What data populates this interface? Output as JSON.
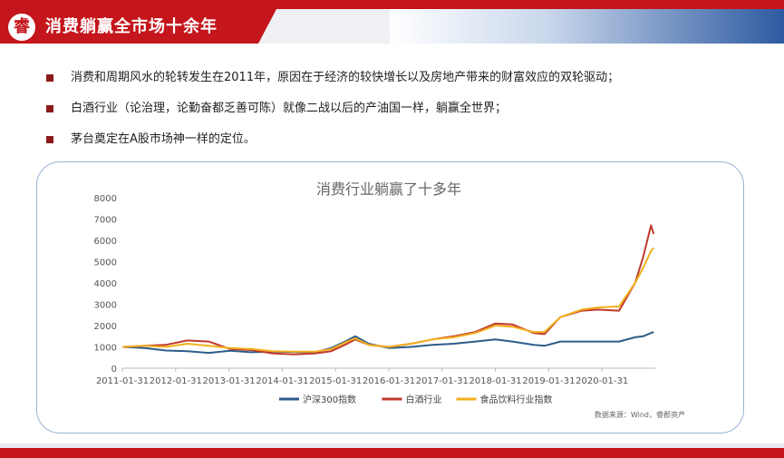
{
  "header": {
    "logo_glyph": "睿",
    "title": "消费躺赢全市场十余年",
    "colors": {
      "accent": "#c4161c",
      "blue": "#2d5aa0"
    }
  },
  "bullets": [
    "消费和周期风水的轮转发生在2011年，原因在于经济的较快增长以及房地产带来的财富效应的双轮驱动；",
    "白酒行业（论治理，论勤奋都乏善可陈）就像二战以后的产油国一样，躺赢全世界；",
    "茅台奠定在A股市场神一样的定位。"
  ],
  "chart_data": {
    "type": "line",
    "title": "消费行业躺赢了十多年",
    "source": "数据来源：Wind，睿郡资产",
    "x_ticks": [
      "2011-01-31",
      "2012-01-31",
      "2013-01-31",
      "2014-01-31",
      "2015-01-31",
      "2016-01-31",
      "2017-01-31",
      "2018-01-31",
      "2019-01-31",
      "2020-01-31"
    ],
    "ylim": [
      0,
      8000
    ],
    "y_ticks": [
      0,
      1000,
      2000,
      3000,
      4000,
      5000,
      6000,
      7000,
      8000
    ],
    "x": [
      2011.08,
      2011.5,
      2011.9,
      2012.3,
      2012.7,
      2013.1,
      2013.5,
      2013.9,
      2014.3,
      2014.7,
      2015.0,
      2015.3,
      2015.45,
      2015.7,
      2016.08,
      2016.5,
      2016.9,
      2017.3,
      2017.7,
      2018.08,
      2018.4,
      2018.8,
      2019.0,
      2019.3,
      2019.7,
      2020.0,
      2020.4,
      2020.7,
      2020.85,
      2021.0,
      2021.05
    ],
    "series": [
      {
        "name": "沪深300指数",
        "color": "#2e5c8a",
        "values": [
          1000,
          950,
          830,
          800,
          720,
          820,
          750,
          780,
          760,
          750,
          950,
          1300,
          1500,
          1150,
          950,
          1000,
          1100,
          1150,
          1250,
          1350,
          1250,
          1100,
          1050,
          1250,
          1250,
          1250,
          1250,
          1450,
          1500,
          1650,
          1700
        ]
      },
      {
        "name": "白酒行业",
        "color": "#c0392b",
        "values": [
          1000,
          1050,
          1100,
          1300,
          1250,
          900,
          850,
          700,
          650,
          700,
          800,
          1150,
          1350,
          1100,
          1000,
          1150,
          1350,
          1500,
          1700,
          2100,
          2050,
          1650,
          1600,
          2400,
          2700,
          2750,
          2700,
          4000,
          5200,
          6700,
          6300
        ]
      },
      {
        "name": "食品饮料行业指数",
        "color": "#f2b01e",
        "values": [
          1000,
          1050,
          1000,
          1150,
          1050,
          950,
          900,
          800,
          780,
          780,
          900,
          1250,
          1400,
          1100,
          1000,
          1150,
          1350,
          1450,
          1650,
          2000,
          1950,
          1700,
          1700,
          2400,
          2750,
          2850,
          2900,
          4000,
          4700,
          5500,
          5650
        ]
      }
    ]
  }
}
